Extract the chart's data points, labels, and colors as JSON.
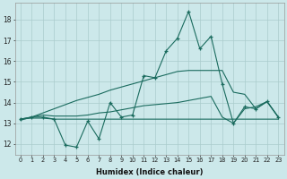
{
  "xlabel": "Humidex (Indice chaleur)",
  "x_ticks": [
    0,
    1,
    2,
    3,
    4,
    5,
    6,
    7,
    8,
    9,
    10,
    11,
    12,
    13,
    14,
    15,
    16,
    17,
    18,
    19,
    20,
    21,
    22,
    23
  ],
  "ylim": [
    11.5,
    18.8
  ],
  "yticks": [
    12,
    13,
    14,
    15,
    16,
    17,
    18
  ],
  "bg_color": "#cce8ea",
  "grid_color": "#aacccc",
  "line_color": "#1a6b5e",
  "series_volatile": {
    "x": [
      0,
      1,
      2,
      3,
      4,
      5,
      6,
      7,
      8,
      9,
      10,
      11,
      12,
      13,
      14,
      15,
      16,
      17,
      18,
      19,
      20,
      21,
      22,
      23
    ],
    "y": [
      13.2,
      13.3,
      13.3,
      13.2,
      11.95,
      11.85,
      13.1,
      12.25,
      14.0,
      13.3,
      13.4,
      15.3,
      15.2,
      16.5,
      17.1,
      18.4,
      16.6,
      17.2,
      14.9,
      13.0,
      13.8,
      13.7,
      14.05,
      13.3
    ]
  },
  "series_rising": {
    "x": [
      0,
      1,
      2,
      3,
      4,
      5,
      6,
      7,
      8,
      9,
      10,
      11,
      12,
      13,
      14,
      15,
      16,
      17,
      18,
      19,
      20,
      21,
      22,
      23
    ],
    "y": [
      13.15,
      13.3,
      13.5,
      13.7,
      13.9,
      14.1,
      14.25,
      14.4,
      14.6,
      14.75,
      14.9,
      15.05,
      15.2,
      15.35,
      15.5,
      15.55,
      15.55,
      15.55,
      15.55,
      14.5,
      14.4,
      13.7,
      14.05,
      13.3
    ]
  },
  "series_flat": {
    "x": [
      0,
      1,
      2,
      3,
      4,
      5,
      6,
      7,
      8,
      9,
      10,
      11,
      12,
      13,
      14,
      15,
      16,
      17,
      18,
      19,
      20,
      21,
      22,
      23
    ],
    "y": [
      13.2,
      13.25,
      13.25,
      13.2,
      13.2,
      13.2,
      13.2,
      13.2,
      13.2,
      13.2,
      13.2,
      13.2,
      13.2,
      13.2,
      13.2,
      13.2,
      13.2,
      13.2,
      13.2,
      13.2,
      13.2,
      13.2,
      13.2,
      13.2
    ]
  },
  "series_gentle": {
    "x": [
      0,
      1,
      2,
      3,
      4,
      5,
      6,
      7,
      8,
      9,
      10,
      11,
      12,
      13,
      14,
      15,
      16,
      17,
      18,
      19,
      20,
      21,
      22,
      23
    ],
    "y": [
      13.2,
      13.3,
      13.4,
      13.35,
      13.35,
      13.35,
      13.4,
      13.5,
      13.55,
      13.65,
      13.75,
      13.85,
      13.9,
      13.95,
      14.0,
      14.1,
      14.2,
      14.3,
      13.3,
      13.0,
      13.7,
      13.8,
      14.05,
      13.3
    ]
  }
}
